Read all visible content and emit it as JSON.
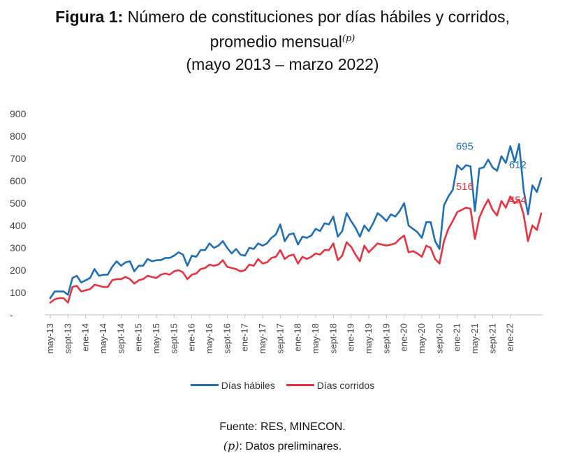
{
  "title": {
    "figure_label": "Figura 1:",
    "line1_text": "Número de constituciones por días hábiles y corridos,",
    "line2_text": "promedio mensual",
    "superscript": "(p)",
    "line3_text": "(mayo 2013 – marzo 2022)"
  },
  "legend": {
    "habiles_label": "Días hábiles",
    "corridos_label": "Días corridos"
  },
  "source": {
    "line1": "Fuente: RES, MINECON.",
    "line2_p": "(p)",
    "line2_text": ": Datos preliminares."
  },
  "chart_data": {
    "type": "line",
    "title": "Número de constituciones por días hábiles y corridos, promedio mensual (mayo 2013 – marzo 2022)",
    "xlabel": "",
    "ylabel": "",
    "ylim": [
      0,
      900
    ],
    "yticks": [
      "-",
      "100",
      "200",
      "300",
      "400",
      "500",
      "600",
      "700",
      "800",
      "900"
    ],
    "grid": false,
    "legend_position": "bottom",
    "x_tick_labels": [
      "may-13",
      "sept-13",
      "ene-14",
      "may-14",
      "sept-14",
      "ene-15",
      "may-15",
      "sept-15",
      "ene-16",
      "may-16",
      "sept-16",
      "ene-17",
      "may-17",
      "sept-17",
      "ene-18",
      "may-18",
      "sept-18",
      "ene-19",
      "may-19",
      "sept-19",
      "ene-20",
      "may-20",
      "sept-20",
      "ene-21",
      "may-21",
      "sept-21",
      "ene-22"
    ],
    "x_start": "may-13",
    "x_end": "mar-22",
    "colors": {
      "habiles": "#1f6fb5",
      "corridos": "#e8323f"
    },
    "data_labels": [
      {
        "series": "Días hábiles",
        "x": "mar-21",
        "value": "695"
      },
      {
        "series": "Días hábiles",
        "x": "mar-22",
        "value": "612"
      },
      {
        "series": "Días corridos",
        "x": "mar-21",
        "value": "516"
      },
      {
        "series": "Días corridos",
        "x": "mar-22",
        "value": "454"
      }
    ],
    "series": [
      {
        "name": "Días hábiles",
        "values": [
          75,
          105,
          105,
          105,
          90,
          165,
          175,
          145,
          155,
          165,
          205,
          175,
          180,
          180,
          215,
          240,
          220,
          235,
          240,
          195,
          220,
          220,
          250,
          240,
          245,
          245,
          255,
          255,
          265,
          280,
          270,
          220,
          265,
          260,
          290,
          290,
          320,
          300,
          310,
          330,
          300,
          275,
          295,
          270,
          265,
          300,
          295,
          320,
          310,
          320,
          345,
          360,
          405,
          330,
          360,
          365,
          315,
          350,
          345,
          355,
          385,
          375,
          410,
          405,
          440,
          350,
          375,
          455,
          420,
          390,
          350,
          400,
          375,
          410,
          455,
          440,
          420,
          450,
          440,
          465,
          500,
          400,
          385,
          370,
          345,
          415,
          415,
          330,
          295,
          490,
          530,
          560,
          670,
          650,
          670,
          665,
          465,
          655,
          660,
          695,
          660,
          645,
          710,
          680,
          755,
          685,
          765,
          560,
          450,
          580,
          550,
          612
        ]
      },
      {
        "name": "Días corridos",
        "values": [
          55,
          70,
          75,
          75,
          55,
          125,
          130,
          105,
          110,
          115,
          135,
          130,
          125,
          125,
          155,
          160,
          160,
          170,
          160,
          140,
          155,
          160,
          175,
          170,
          165,
          180,
          185,
          180,
          195,
          200,
          190,
          160,
          180,
          185,
          205,
          210,
          225,
          220,
          225,
          245,
          215,
          210,
          205,
          195,
          200,
          225,
          220,
          250,
          230,
          235,
          255,
          260,
          290,
          250,
          265,
          270,
          230,
          260,
          250,
          260,
          275,
          270,
          290,
          290,
          320,
          245,
          265,
          325,
          305,
          270,
          240,
          310,
          280,
          300,
          320,
          315,
          310,
          315,
          320,
          340,
          355,
          280,
          285,
          275,
          260,
          310,
          300,
          250,
          230,
          330,
          385,
          420,
          460,
          470,
          480,
          475,
          340,
          435,
          480,
          516,
          470,
          445,
          510,
          480,
          530,
          500,
          515,
          450,
          330,
          400,
          380,
          454
        ]
      }
    ]
  }
}
